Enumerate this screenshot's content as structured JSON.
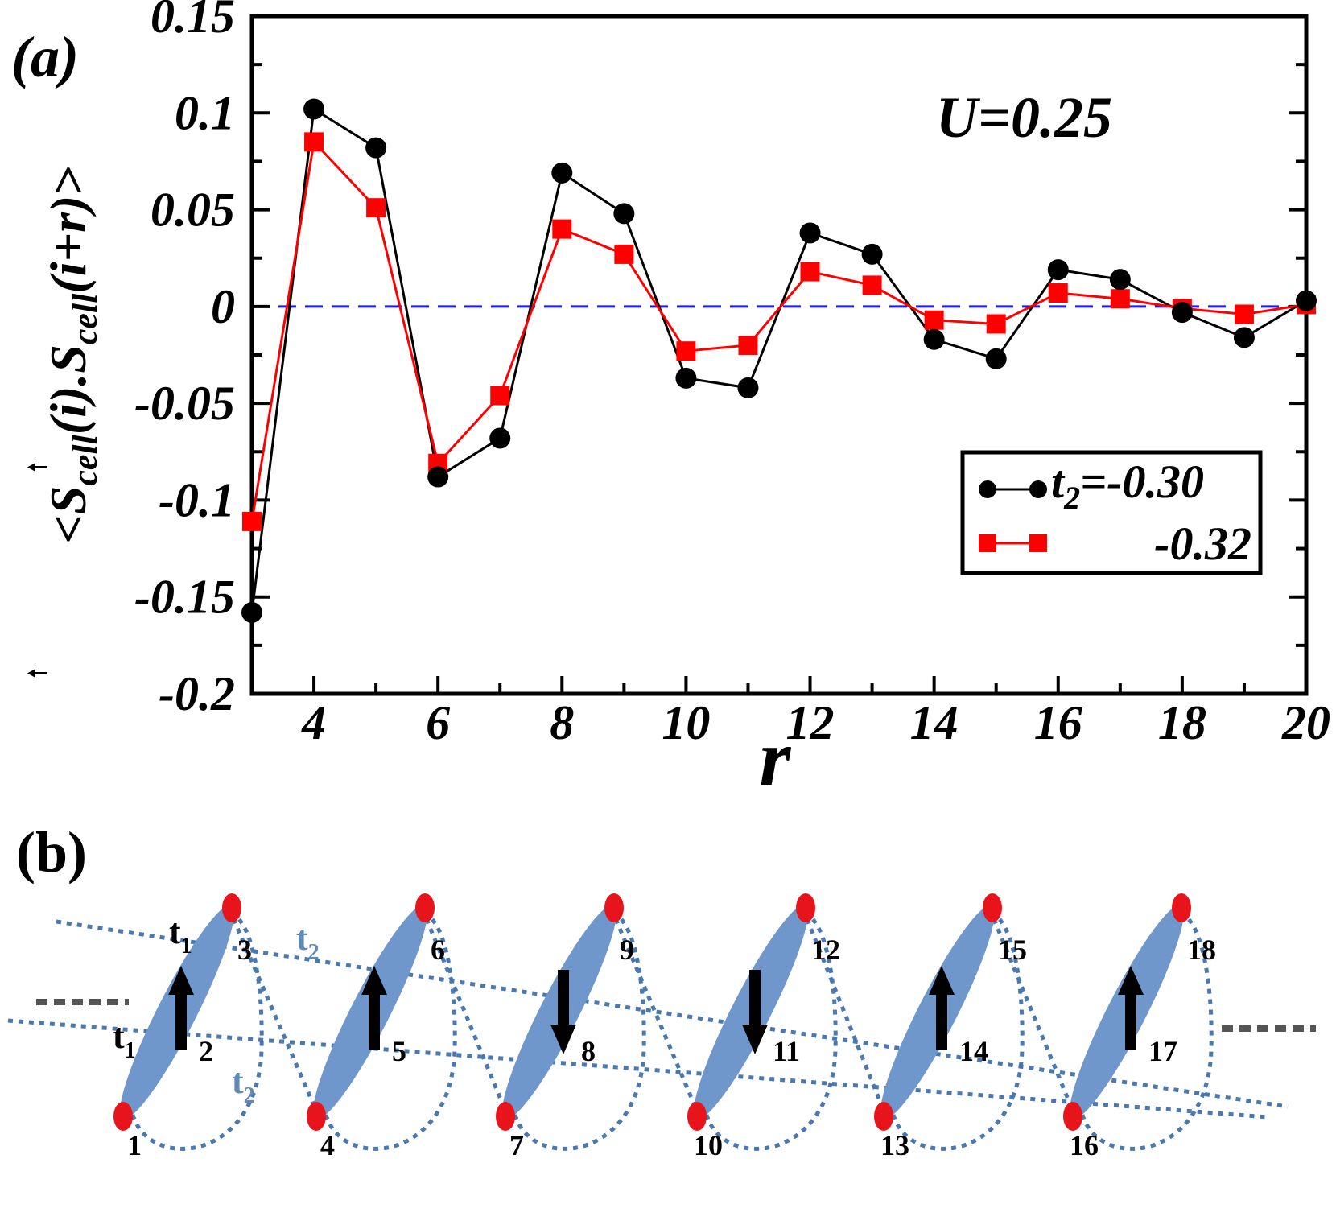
{
  "chart_data": {
    "type": "line",
    "panel_label": "(a)",
    "annotation": "U=0.25",
    "xlabel": "r",
    "ylabel": {
      "open": "<",
      "s1": "S",
      "sub1": "cell",
      "arg1": "(i).",
      "s2": "S",
      "sub2": "cell",
      "arg2": "(i+r)",
      "close": ">"
    },
    "x": [
      3,
      4,
      5,
      6,
      7,
      8,
      9,
      10,
      11,
      12,
      13,
      14,
      15,
      16,
      17,
      18,
      19,
      20
    ],
    "xlim": [
      3,
      20
    ],
    "ylim": [
      -0.2,
      0.15
    ],
    "xticks": [
      "4",
      "6",
      "8",
      "10",
      "12",
      "14",
      "16",
      "18",
      "20"
    ],
    "xtick_values": [
      4,
      6,
      8,
      10,
      12,
      14,
      16,
      18,
      20
    ],
    "yticks": [
      "0.15",
      "0.1",
      "0.05",
      "0",
      "-0.05",
      "-0.1",
      "-0.15",
      "-0.2"
    ],
    "ytick_values": [
      0.15,
      0.1,
      0.05,
      0,
      -0.05,
      -0.1,
      -0.15,
      -0.2
    ],
    "reference_line": {
      "y": 0,
      "color": "#1a1aff",
      "style": "dashed"
    },
    "legend": {
      "title_symbol": "t",
      "title_sub": "2",
      "position": "lower-right"
    },
    "series": [
      {
        "name": "=-0.30",
        "color": "#000000",
        "marker": "circle",
        "values": [
          -0.158,
          0.102,
          0.082,
          -0.088,
          -0.068,
          0.069,
          0.048,
          -0.037,
          -0.042,
          0.038,
          0.027,
          -0.017,
          -0.027,
          0.019,
          0.014,
          -0.003,
          -0.016,
          0.003
        ]
      },
      {
        "name": "-0.32",
        "color": "#ff0000",
        "marker": "square",
        "values": [
          -0.111,
          0.085,
          0.051,
          -0.081,
          -0.046,
          0.04,
          0.027,
          -0.023,
          -0.02,
          0.018,
          0.011,
          -0.007,
          -0.009,
          0.007,
          0.004,
          -0.001,
          -0.004,
          0.001
        ]
      }
    ]
  },
  "diagram": {
    "panel_label": "(b)",
    "sites": [
      "1",
      "2",
      "3",
      "4",
      "5",
      "6",
      "7",
      "8",
      "9",
      "10",
      "11",
      "12",
      "13",
      "14",
      "15",
      "16",
      "17",
      "18"
    ],
    "spins": [
      "up",
      "up",
      "down",
      "down",
      "up",
      "up"
    ],
    "hopping_labels": [
      {
        "sym": "t",
        "sub": "1"
      },
      {
        "sym": "t",
        "sub": "2"
      },
      {
        "sym": "t",
        "sub": "1"
      },
      {
        "sym": "t",
        "sub": "2"
      }
    ],
    "colors": {
      "ellipse": "#6f97cc",
      "site": "#e8141c",
      "bond": "#4a78b0",
      "lead": "#555555"
    }
  }
}
